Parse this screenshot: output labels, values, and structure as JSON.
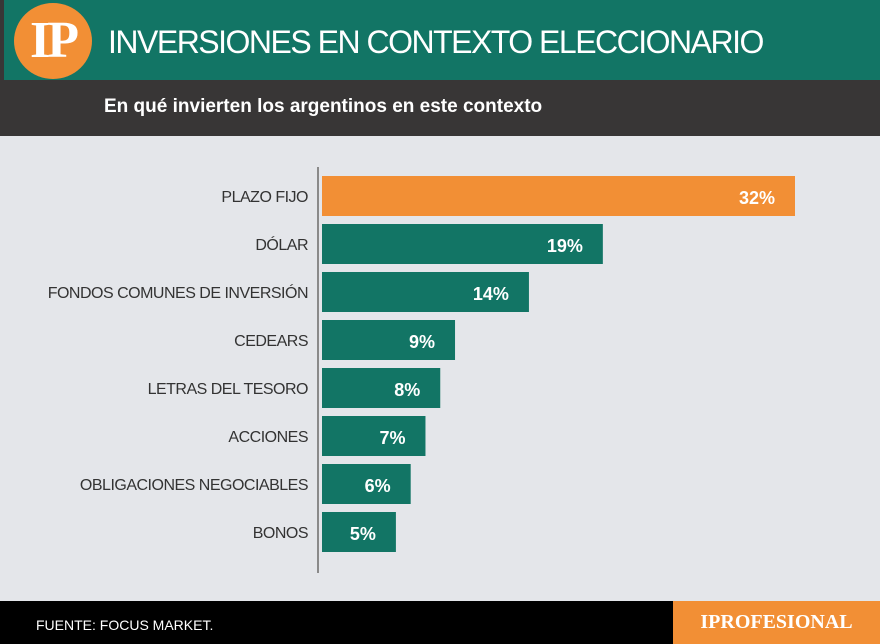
{
  "header": {
    "logo": "IP",
    "title": "INVERSIONES EN CONTEXTO ELECCIONARIO",
    "subtitle": "En qué invierten los argentinos en este contexto"
  },
  "footer": {
    "source": "FUENTE: FOCUS MARKET.",
    "brand": "IPROFESIONAL"
  },
  "colors": {
    "highlight": "#f28f35",
    "bar": "#127565"
  },
  "chart_data": {
    "type": "bar",
    "orientation": "horizontal",
    "categories": [
      "PLAZO FIJO",
      "DÓLAR",
      "FONDOS COMUNES DE INVERSIÓN",
      "CEDEARS",
      "LETRAS DEL TESORO",
      "ACCIONES",
      "OBLIGACIONES NEGOCIABLES",
      "BONOS"
    ],
    "values": [
      32,
      19,
      14,
      9,
      8,
      7,
      6,
      5
    ],
    "labels": [
      "32%",
      "19%",
      "14%",
      "9%",
      "8%",
      "7%",
      "6%",
      "5%"
    ],
    "highlight_index": 0,
    "grid": false
  }
}
